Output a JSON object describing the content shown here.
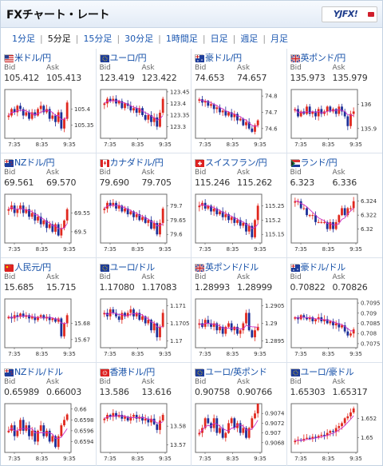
{
  "header": {
    "title": "FXチャート・レート",
    "logo_text": "YJFX!",
    "logo_text_accent": "!"
  },
  "tabs": [
    {
      "label": "1分足",
      "active": false
    },
    {
      "label": "5分足",
      "active": true
    },
    {
      "label": "15分足",
      "active": false
    },
    {
      "label": "30分足",
      "active": false
    },
    {
      "label": "1時間足",
      "active": false
    },
    {
      "label": "日足",
      "active": false
    },
    {
      "label": "週足",
      "active": false
    },
    {
      "label": "月足",
      "active": false
    }
  ],
  "labels": {
    "bid": "Bid",
    "ask": "Ask"
  },
  "colors": {
    "up": "#e0281e",
    "down": "#1c2f98",
    "ma": "#cc2fc8",
    "frame": "#6e6e6e",
    "link": "#1550a8"
  },
  "cards": [
    {
      "pair": "米ドル/円",
      "flag": "us-flag",
      "bid": "105.412",
      "ask": "105.413",
      "y_ticks": [
        "105.4",
        "105.35"
      ],
      "x_ticks": [
        "7:35",
        "8:35",
        "9:35"
      ],
      "chart_data": {
        "type": "candlestick",
        "ylim": [
          105.31,
          105.46
        ],
        "closes": [
          105.38,
          105.4,
          105.39,
          105.41,
          105.4,
          105.38,
          105.39,
          105.37,
          105.39,
          105.38,
          105.4,
          105.41,
          105.39,
          105.4,
          105.37,
          105.38,
          105.36,
          105.39,
          105.34,
          105.37,
          105.42
        ]
      }
    },
    {
      "pair": "ユーロ/円",
      "flag": "eu-flag",
      "bid": "123.419",
      "ask": "123.422",
      "y_ticks": [
        "123.45",
        "123.4",
        "123.35",
        "123.3"
      ],
      "x_ticks": [
        "7:35",
        "8:35",
        "9:35"
      ],
      "chart_data": {
        "type": "candlestick",
        "ylim": [
          123.25,
          123.46
        ],
        "closes": [
          123.4,
          123.42,
          123.41,
          123.42,
          123.4,
          123.41,
          123.38,
          123.4,
          123.39,
          123.37,
          123.38,
          123.36,
          123.38,
          123.35,
          123.33,
          123.35,
          123.32,
          123.34,
          123.3,
          123.36,
          123.42
        ]
      }
    },
    {
      "pair": "豪ドル/円",
      "flag": "au-flag",
      "bid": "74.653",
      "ask": "74.657",
      "y_ticks": [
        "74.8",
        "74.7",
        "74.6"
      ],
      "x_ticks": [
        "7:35",
        "8:35",
        "9:35"
      ],
      "chart_data": {
        "type": "candlestick",
        "ylim": [
          74.54,
          74.84
        ],
        "closes": [
          74.78,
          74.76,
          74.77,
          74.74,
          74.75,
          74.72,
          74.73,
          74.7,
          74.71,
          74.68,
          74.7,
          74.67,
          74.69,
          74.65,
          74.66,
          74.62,
          74.64,
          74.6,
          74.58,
          74.62,
          74.65
        ]
      }
    },
    {
      "pair": "英ポンド/円",
      "flag": "gb-flag",
      "bid": "135.973",
      "ask": "135.979",
      "y_ticks": [
        "136",
        "135.9"
      ],
      "x_ticks": [
        "7:35",
        "8:35",
        "9:35"
      ],
      "chart_data": {
        "type": "candlestick",
        "ylim": [
          135.86,
          136.06
        ],
        "closes": [
          135.98,
          135.95,
          135.97,
          135.96,
          135.99,
          135.96,
          135.97,
          135.95,
          135.98,
          135.96,
          135.97,
          135.99,
          135.97,
          135.98,
          135.96,
          135.99,
          135.97,
          135.95,
          135.91,
          135.96,
          135.97
        ]
      }
    },
    {
      "pair": "NZドル/円",
      "flag": "nz-flag",
      "bid": "69.561",
      "ask": "69.570",
      "y_ticks": [
        "69.55",
        "69.5"
      ],
      "x_ticks": [
        "7:35",
        "8:35",
        "9:35"
      ],
      "chart_data": {
        "type": "candlestick",
        "ylim": [
          69.47,
          69.6
        ],
        "closes": [
          69.56,
          69.57,
          69.55,
          69.56,
          69.57,
          69.55,
          69.56,
          69.54,
          69.55,
          69.53,
          69.54,
          69.52,
          69.53,
          69.51,
          69.52,
          69.5,
          69.52,
          69.49,
          69.51,
          69.53,
          69.56
        ]
      }
    },
    {
      "pair": "カナダドル/円",
      "flag": "ca-flag",
      "bid": "79.690",
      "ask": "79.705",
      "y_ticks": [
        "79.7",
        "79.65",
        "79.6"
      ],
      "x_ticks": [
        "7:35",
        "8:35",
        "9:35"
      ],
      "chart_data": {
        "type": "candlestick",
        "ylim": [
          79.57,
          79.74
        ],
        "closes": [
          79.69,
          79.71,
          79.7,
          79.71,
          79.69,
          79.7,
          79.68,
          79.69,
          79.67,
          79.68,
          79.66,
          79.67,
          79.65,
          79.66,
          79.64,
          79.65,
          79.62,
          79.64,
          79.6,
          79.64,
          79.69
        ]
      }
    },
    {
      "pair": "スイスフラン/円",
      "flag": "ch-flag",
      "bid": "115.246",
      "ask": "115.262",
      "y_ticks": [
        "115.25",
        "115.2",
        "115.15"
      ],
      "x_ticks": [
        "7:35",
        "8:35",
        "9:35"
      ],
      "chart_data": {
        "type": "candlestick",
        "ylim": [
          115.12,
          115.29
        ],
        "closes": [
          115.25,
          115.26,
          115.24,
          115.25,
          115.23,
          115.24,
          115.22,
          115.23,
          115.21,
          115.22,
          115.2,
          115.21,
          115.19,
          115.2,
          115.18,
          115.19,
          115.16,
          115.18,
          115.14,
          115.2,
          115.25
        ]
      }
    },
    {
      "pair": "ランド/円",
      "flag": "za-flag",
      "bid": "6.323",
      "ask": "6.336",
      "y_ticks": [
        "6.324",
        "6.322",
        "6.32"
      ],
      "x_ticks": [
        "7:35",
        "8:35",
        "9:35"
      ],
      "chart_data": {
        "type": "candlestick",
        "ylim": [
          6.318,
          6.325
        ],
        "closes": [
          6.324,
          6.324,
          6.323,
          6.323,
          6.322,
          6.322,
          6.322,
          6.321,
          6.321,
          6.321,
          6.321,
          6.32,
          6.321,
          6.32,
          6.321,
          6.322,
          6.323,
          6.322,
          6.323,
          6.323,
          6.324
        ]
      }
    },
    {
      "pair": "人民元/円",
      "flag": "cn-flag",
      "bid": "15.685",
      "ask": "15.715",
      "y_ticks": [
        "15.68",
        "15.67"
      ],
      "x_ticks": [
        "7:35",
        "8:35",
        "9:35"
      ],
      "chart_data": {
        "type": "candlestick",
        "ylim": [
          15.665,
          15.695
        ],
        "closes": [
          15.684,
          15.683,
          15.685,
          15.684,
          15.686,
          15.684,
          15.685,
          15.683,
          15.684,
          15.682,
          15.684,
          15.685,
          15.683,
          15.684,
          15.682,
          15.683,
          15.681,
          15.683,
          15.672,
          15.68,
          15.685
        ]
      }
    },
    {
      "pair": "ユーロ/ドル",
      "flag": "eu-flag",
      "bid": "1.17080",
      "ask": "1.17083",
      "y_ticks": [
        "1.171",
        "1.1705",
        "1.17"
      ],
      "x_ticks": [
        "7:35",
        "8:35",
        "9:35"
      ],
      "chart_data": {
        "type": "candlestick",
        "ylim": [
          1.1698,
          1.1712
        ],
        "closes": [
          1.1708,
          1.1707,
          1.1709,
          1.1708,
          1.1707,
          1.1706,
          1.1708,
          1.1707,
          1.1708,
          1.1709,
          1.1707,
          1.1708,
          1.1706,
          1.1707,
          1.1705,
          1.1706,
          1.1703,
          1.1705,
          1.1701,
          1.1704,
          1.1708
        ]
      }
    },
    {
      "pair": "英ポンド/ドル",
      "flag": "gb-flag",
      "bid": "1.28993",
      "ask": "1.28999",
      "y_ticks": [
        "1.2905",
        "1.29",
        "1.2895"
      ],
      "x_ticks": [
        "7:35",
        "8:35",
        "9:35"
      ],
      "chart_data": {
        "type": "candlestick",
        "ylim": [
          1.2893,
          1.2907
        ],
        "closes": [
          1.29,
          1.2899,
          1.2901,
          1.29,
          1.2899,
          1.29,
          1.2898,
          1.2899,
          1.2897,
          1.2899,
          1.29,
          1.2898,
          1.2899,
          1.2897,
          1.2898,
          1.29,
          1.2903,
          1.2898,
          1.2896,
          1.2898,
          1.2899
        ]
      }
    },
    {
      "pair": "豪ドル/ドル",
      "flag": "au-flag",
      "bid": "0.70822",
      "ask": "0.70826",
      "y_ticks": [
        "0.7095",
        "0.709",
        "0.7085",
        "0.708",
        "0.7075"
      ],
      "x_ticks": [
        "7:35",
        "8:35",
        "9:35"
      ],
      "chart_data": {
        "type": "candlestick",
        "ylim": [
          0.7073,
          0.7097
        ],
        "closes": [
          0.7088,
          0.7087,
          0.7089,
          0.7088,
          0.7087,
          0.7088,
          0.7086,
          0.7087,
          0.7088,
          0.7086,
          0.7087,
          0.7085,
          0.7086,
          0.7084,
          0.7085,
          0.7083,
          0.7084,
          0.7081,
          0.7079,
          0.708,
          0.7082
        ]
      }
    },
    {
      "pair": "NZドル/ドル",
      "flag": "nz-flag",
      "bid": "0.65989",
      "ask": "0.66003",
      "y_ticks": [
        "0.66",
        "0.6598",
        "0.6596",
        "0.6594"
      ],
      "x_ticks": [
        "7:35",
        "8:35",
        "9:35"
      ],
      "chart_data": {
        "type": "candlestick",
        "ylim": [
          0.6592,
          0.6601
        ],
        "closes": [
          0.6596,
          0.6597,
          0.6595,
          0.6596,
          0.6598,
          0.6596,
          0.6597,
          0.6595,
          0.6596,
          0.6594,
          0.6596,
          0.6597,
          0.6595,
          0.6596,
          0.6594,
          0.6595,
          0.6593,
          0.6595,
          0.6597,
          0.6598,
          0.6599
        ]
      }
    },
    {
      "pair": "香港ドル/円",
      "flag": "hk-flag",
      "bid": "13.586",
      "ask": "13.616",
      "y_ticks": [
        "13.58",
        "13.57"
      ],
      "x_ticks": [
        "7:35",
        "8:35",
        "9:35"
      ],
      "chart_data": {
        "type": "candlestick",
        "ylim": [
          13.566,
          13.592
        ],
        "closes": [
          13.584,
          13.586,
          13.585,
          13.587,
          13.585,
          13.586,
          13.584,
          13.585,
          13.583,
          13.585,
          13.586,
          13.584,
          13.585,
          13.583,
          13.584,
          13.582,
          13.584,
          13.581,
          13.578,
          13.583,
          13.586
        ]
      }
    },
    {
      "pair": "ユーロ/英ポンド",
      "flag": "eu-flag",
      "bid": "0.90758",
      "ask": "0.90766",
      "y_ticks": [
        "0.9074",
        "0.9072",
        "0.907",
        "0.9068"
      ],
      "x_ticks": [
        "7:35",
        "8:35",
        "9:35"
      ],
      "chart_data": {
        "type": "candlestick",
        "ylim": [
          0.9066,
          0.9076
        ],
        "closes": [
          0.907,
          0.9071,
          0.9073,
          0.9072,
          0.9071,
          0.9073,
          0.907,
          0.9071,
          0.9069,
          0.907,
          0.9072,
          0.9073,
          0.9071,
          0.9072,
          0.907,
          0.9071,
          0.9069,
          0.9071,
          0.9073,
          0.9074,
          0.9076
        ]
      }
    },
    {
      "pair": "ユーロ/豪ドル",
      "flag": "eu-flag",
      "bid": "1.65303",
      "ask": "1.65317",
      "y_ticks": [
        "1.652",
        "1.65"
      ],
      "x_ticks": [
        "7:35",
        "8:35",
        "9:35"
      ],
      "chart_data": {
        "type": "candlestick",
        "ylim": [
          1.6485,
          1.6535
        ],
        "closes": [
          1.6497,
          1.6498,
          1.6497,
          1.6499,
          1.65,
          1.6499,
          1.6501,
          1.65,
          1.6502,
          1.6503,
          1.6502,
          1.6505,
          1.6507,
          1.6506,
          1.651,
          1.6512,
          1.6515,
          1.652,
          1.6522,
          1.6526,
          1.653
        ]
      }
    }
  ]
}
